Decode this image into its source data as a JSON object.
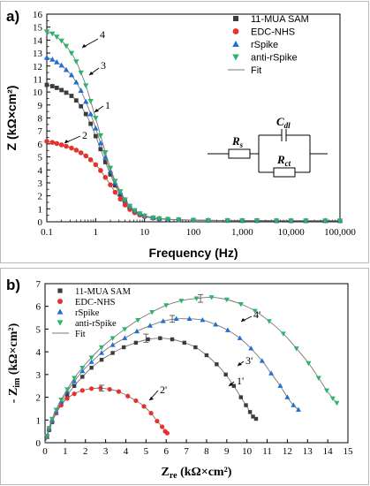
{
  "colors": {
    "mua": "#3c3c3c",
    "edc": "#e8312a",
    "rspike": "#1f6fd6",
    "anti": "#2bb56a",
    "fit": "#777777"
  },
  "chart_data": [
    {
      "type": "scatter",
      "panel_label": "a)",
      "xlabel": "Frequency (Hz)",
      "ylabel": "Z (kΩ×cm²)",
      "xscale": "log",
      "xlim": [
        0.1,
        100000
      ],
      "ylim": [
        0,
        16
      ],
      "xticks": [
        0.1,
        1,
        10,
        100,
        1000,
        10000,
        100000
      ],
      "xtick_labels": [
        "0.1",
        "1",
        "10",
        "100",
        "1,000",
        "10,000",
        "100,000"
      ],
      "yticks": [
        0,
        1,
        2,
        3,
        4,
        5,
        6,
        7,
        8,
        9,
        10,
        11,
        12,
        13,
        14,
        15,
        16
      ],
      "legend_position": "top-right",
      "series": [
        {
          "name": "11-MUA SAM",
          "marker": "square",
          "color": "#3c3c3c",
          "x": [
            0.1,
            0.13,
            0.16,
            0.2,
            0.25,
            0.32,
            0.4,
            0.5,
            0.63,
            0.79,
            1,
            1.26,
            1.58,
            2,
            2.5,
            3.2,
            4,
            5,
            6.3,
            8,
            10,
            15,
            20,
            30,
            50,
            100,
            200,
            500,
            1000,
            2000,
            5000,
            10000,
            20000,
            50000,
            100000
          ],
          "y": [
            10.55,
            10.45,
            10.32,
            10.15,
            9.95,
            9.7,
            9.35,
            8.9,
            8.3,
            7.55,
            6.6,
            5.6,
            4.6,
            3.65,
            2.8,
            2.1,
            1.55,
            1.1,
            0.8,
            0.58,
            0.44,
            0.3,
            0.24,
            0.19,
            0.16,
            0.13,
            0.11,
            0.1,
            0.09,
            0.09,
            0.08,
            0.08,
            0.08,
            0.08,
            0.08
          ]
        },
        {
          "name": "EDC-NHS",
          "marker": "circle",
          "color": "#e8312a",
          "x": [
            0.1,
            0.13,
            0.16,
            0.2,
            0.25,
            0.32,
            0.4,
            0.5,
            0.63,
            0.79,
            1,
            1.26,
            1.58,
            2,
            2.5,
            3.2,
            4,
            5,
            6.3,
            8,
            10,
            15,
            20,
            30,
            50,
            100,
            200,
            500,
            1000,
            2000,
            5000,
            10000,
            20000,
            50000,
            100000
          ],
          "y": [
            6.2,
            6.12,
            6.03,
            5.93,
            5.82,
            5.68,
            5.52,
            5.32,
            5.08,
            4.78,
            4.4,
            3.95,
            3.42,
            2.85,
            2.28,
            1.75,
            1.3,
            0.95,
            0.7,
            0.52,
            0.4,
            0.28,
            0.22,
            0.18,
            0.15,
            0.12,
            0.11,
            0.1,
            0.09,
            0.09,
            0.08,
            0.08,
            0.08,
            0.08,
            0.08
          ]
        },
        {
          "name": "rSpike",
          "marker": "triangle-up",
          "color": "#1f6fd6",
          "x": [
            0.1,
            0.13,
            0.16,
            0.2,
            0.25,
            0.32,
            0.4,
            0.5,
            0.63,
            0.79,
            1,
            1.26,
            1.58,
            2,
            2.5,
            3.2,
            4,
            5,
            6.3,
            8,
            10,
            15,
            20,
            30,
            50,
            100,
            200,
            500,
            1000,
            2000,
            5000,
            10000,
            20000,
            50000,
            100000
          ],
          "y": [
            12.65,
            12.5,
            12.3,
            12.05,
            11.7,
            11.3,
            10.75,
            10.1,
            9.25,
            8.3,
            7.2,
            6.05,
            4.95,
            3.9,
            3.0,
            2.25,
            1.65,
            1.18,
            0.85,
            0.62,
            0.46,
            0.31,
            0.25,
            0.2,
            0.16,
            0.13,
            0.11,
            0.1,
            0.09,
            0.09,
            0.08,
            0.08,
            0.08,
            0.08,
            0.08
          ]
        },
        {
          "name": "anti-rSpike",
          "marker": "triangle-down",
          "color": "#2bb56a",
          "x": [
            0.1,
            0.13,
            0.16,
            0.2,
            0.25,
            0.32,
            0.4,
            0.5,
            0.63,
            0.79,
            1,
            1.26,
            1.58,
            2,
            2.5,
            3.2,
            4,
            5,
            6.3,
            8,
            10,
            15,
            20,
            30,
            50,
            100,
            200,
            500,
            1000,
            2000,
            5000,
            10000,
            20000,
            50000,
            100000
          ],
          "y": [
            14.65,
            14.5,
            14.25,
            13.95,
            13.55,
            13.0,
            12.35,
            11.5,
            10.5,
            9.3,
            8.0,
            6.65,
            5.35,
            4.15,
            3.15,
            2.35,
            1.72,
            1.22,
            0.88,
            0.64,
            0.47,
            0.32,
            0.25,
            0.2,
            0.16,
            0.13,
            0.11,
            0.1,
            0.09,
            0.09,
            0.08,
            0.08,
            0.08,
            0.08,
            0.08
          ]
        }
      ],
      "fit_legend_label": "Fit",
      "annotations": [
        "1",
        "2",
        "3",
        "4"
      ],
      "circuit": {
        "rs": "R",
        "rs_sub": "s",
        "cdl": "C",
        "cdl_sub": "dl",
        "rct": "R",
        "rct_sub": "ct"
      }
    },
    {
      "type": "scatter",
      "panel_label": "b)",
      "xlabel_main": "Z",
      "xlabel_sub": "re",
      "xlabel_unit": " (kΩ×cm²)",
      "ylabel_prefix": "- Z",
      "ylabel_sub": "im",
      "ylabel_unit": " (kΩ×cm²)",
      "xlim": [
        0,
        15
      ],
      "ylim": [
        0,
        7
      ],
      "xticks": [
        0,
        1,
        2,
        3,
        4,
        5,
        6,
        7,
        8,
        9,
        10,
        11,
        12,
        13,
        14,
        15
      ],
      "yticks": [
        0,
        1,
        2,
        3,
        4,
        5,
        6,
        7
      ],
      "legend_position": "top-left",
      "series": [
        {
          "name": "11-MUA SAM",
          "marker": "square",
          "color": "#3c3c3c",
          "x": [
            0.1,
            0.2,
            0.35,
            0.55,
            0.8,
            1.1,
            1.45,
            1.85,
            2.3,
            2.8,
            3.35,
            3.9,
            4.5,
            5.1,
            5.7,
            6.3,
            6.9,
            7.45,
            8.0,
            8.5,
            8.95,
            9.35,
            9.7,
            9.95,
            10.15,
            10.3,
            10.45
          ],
          "y": [
            0.25,
            0.55,
            0.9,
            1.3,
            1.7,
            2.1,
            2.5,
            2.9,
            3.3,
            3.65,
            3.95,
            4.2,
            4.4,
            4.55,
            4.6,
            4.55,
            4.4,
            4.2,
            3.85,
            3.45,
            3.0,
            2.5,
            2.0,
            1.65,
            1.35,
            1.15,
            1.05
          ],
          "err_x": 5.0,
          "err_y": 4.6,
          "err": 0.18
        },
        {
          "name": "EDC-NHS",
          "marker": "circle",
          "color": "#e8312a",
          "x": [
            0.1,
            0.2,
            0.35,
            0.55,
            0.8,
            1.1,
            1.45,
            1.85,
            2.3,
            2.75,
            3.2,
            3.65,
            4.1,
            4.5,
            4.9,
            5.25,
            5.55,
            5.8,
            5.95,
            6.05
          ],
          "y": [
            0.3,
            0.6,
            0.95,
            1.3,
            1.65,
            1.95,
            2.15,
            2.3,
            2.38,
            2.4,
            2.35,
            2.25,
            2.05,
            1.85,
            1.6,
            1.3,
            0.95,
            0.7,
            0.5,
            0.42
          ],
          "err_x": 2.8,
          "err_y": 2.4,
          "err": 0.13
        },
        {
          "name": "rSpike",
          "marker": "triangle-up",
          "color": "#1f6fd6",
          "x": [
            0.1,
            0.2,
            0.35,
            0.55,
            0.8,
            1.1,
            1.45,
            1.85,
            2.3,
            2.8,
            3.35,
            3.95,
            4.55,
            5.2,
            5.85,
            6.5,
            7.15,
            7.8,
            8.45,
            9.05,
            9.65,
            10.2,
            10.75,
            11.2,
            11.65,
            12.0,
            12.3,
            12.55
          ],
          "y": [
            0.25,
            0.6,
            0.95,
            1.35,
            1.8,
            2.25,
            2.7,
            3.15,
            3.55,
            3.95,
            4.3,
            4.6,
            4.9,
            5.15,
            5.35,
            5.45,
            5.45,
            5.4,
            5.2,
            4.95,
            4.6,
            4.15,
            3.6,
            3.05,
            2.5,
            2.0,
            1.65,
            1.45
          ],
          "err_x": 6.3,
          "err_y": 5.45,
          "err": 0.15
        },
        {
          "name": "anti-rSpike",
          "marker": "triangle-down",
          "color": "#2bb56a",
          "x": [
            0.1,
            0.2,
            0.35,
            0.55,
            0.8,
            1.1,
            1.45,
            1.85,
            2.3,
            2.8,
            3.35,
            3.95,
            4.6,
            5.3,
            6.0,
            6.75,
            7.5,
            8.25,
            9.0,
            9.7,
            10.4,
            11.1,
            11.8,
            12.45,
            13.05,
            13.55,
            13.95,
            14.25,
            14.45
          ],
          "y": [
            0.3,
            0.65,
            1.05,
            1.45,
            1.9,
            2.35,
            2.85,
            3.3,
            3.75,
            4.2,
            4.6,
            5.0,
            5.4,
            5.75,
            6.05,
            6.25,
            6.35,
            6.4,
            6.3,
            6.1,
            5.8,
            5.35,
            4.8,
            4.15,
            3.5,
            2.85,
            2.3,
            1.95,
            1.75
          ],
          "err_x": 7.7,
          "err_y": 6.35,
          "err": 0.17
        }
      ],
      "fit_legend_label": "Fit",
      "annotations": [
        "1'",
        "2'",
        "3'",
        "4'"
      ]
    }
  ]
}
